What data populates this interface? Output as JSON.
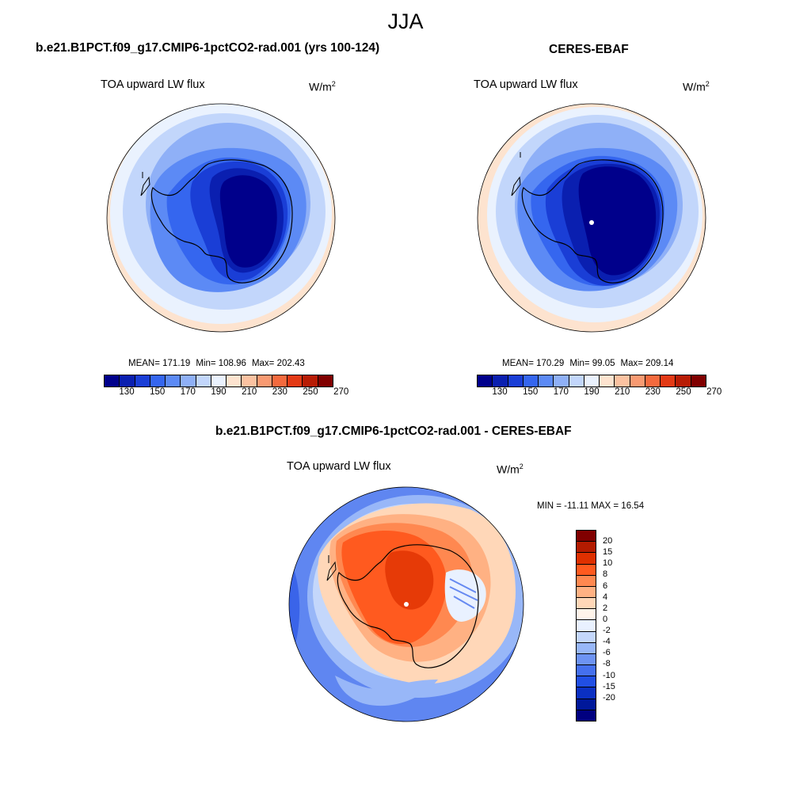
{
  "figure": {
    "title": "JJA"
  },
  "panel_model": {
    "title": "b.e21.B1PCT.f09_g17.CMIP6-1pctCO2-rad.001 (yrs 100-124)",
    "variable": "TOA upward LW flux",
    "units_base": "W/m",
    "units_exp": "2",
    "mean_text": "MEAN= 171.19",
    "min_text": "Min= 108.96",
    "max_text": "Max= 202.43"
  },
  "panel_obs": {
    "title": "CERES-EBAF",
    "variable": "TOA upward LW flux",
    "units_base": "W/m",
    "units_exp": "2",
    "mean_text": "MEAN= 170.29",
    "min_text": "Min=  99.05",
    "max_text": "Max= 209.14"
  },
  "panel_diff": {
    "title": "b.e21.B1PCT.f09_g17.CMIP6-1pctCO2-rad.001 - CERES-EBAF",
    "variable": "TOA upward LW flux",
    "units_base": "W/m",
    "units_exp": "2",
    "minmax_text": "MIN = -11.11 MAX =  16.54"
  },
  "colorbar_abs": {
    "colors": [
      "#00008b",
      "#0a1fb0",
      "#1a3ed6",
      "#3566ef",
      "#5c8af5",
      "#8fb0f7",
      "#c2d6fb",
      "#eaf2fe",
      "#fde3cf",
      "#fbc2a1",
      "#f89a72",
      "#f46a3e",
      "#e33a16",
      "#b81c05",
      "#800000"
    ],
    "labels": [
      "130",
      "150",
      "170",
      "190",
      "210",
      "230",
      "250",
      "270"
    ]
  },
  "colorbar_diff": {
    "colors": [
      "#800000",
      "#b31b00",
      "#de3000",
      "#ff5a1f",
      "#ff8850",
      "#ffb183",
      "#ffd7b8",
      "#fff4ea",
      "#e9f1ff",
      "#c4d7fb",
      "#98b7f8",
      "#6d93f3",
      "#4570ee",
      "#214fe4",
      "#0b30c2",
      "#00189a",
      "#000080"
    ],
    "labels": [
      "20",
      "15",
      "10",
      "8",
      "6",
      "4",
      "2",
      "0",
      "-2",
      "-4",
      "-6",
      "-8",
      "-10",
      "-15",
      "-20"
    ]
  },
  "chart_data": [
    {
      "type": "heatmap",
      "title": "b.e21.B1PCT.f09_g17.CMIP6-1pctCO2-rad.001 (yrs 100-124)",
      "variable": "TOA upward LW flux",
      "units": "W/m2",
      "projection": "south polar stereographic",
      "season": "JJA",
      "stats": {
        "mean": 171.19,
        "min": 108.96,
        "max": 202.43
      },
      "contour_levels": [
        130,
        140,
        150,
        160,
        170,
        180,
        190,
        200,
        210,
        220,
        230,
        240,
        250,
        260,
        270
      ]
    },
    {
      "type": "heatmap",
      "title": "CERES-EBAF",
      "variable": "TOA upward LW flux",
      "units": "W/m2",
      "projection": "south polar stereographic",
      "season": "JJA",
      "stats": {
        "mean": 170.29,
        "min": 99.05,
        "max": 209.14
      },
      "contour_levels": [
        130,
        140,
        150,
        160,
        170,
        180,
        190,
        200,
        210,
        220,
        230,
        240,
        250,
        260,
        270
      ]
    },
    {
      "type": "heatmap",
      "title": "b.e21.B1PCT.f09_g17.CMIP6-1pctCO2-rad.001 - CERES-EBAF",
      "variable": "TOA upward LW flux",
      "units": "W/m2",
      "projection": "south polar stereographic",
      "season": "JJA",
      "stats": {
        "min": -11.11,
        "max": 16.54
      },
      "contour_levels": [
        -20,
        -15,
        -10,
        -8,
        -6,
        -4,
        -2,
        0,
        2,
        4,
        6,
        8,
        10,
        15,
        20
      ]
    }
  ]
}
